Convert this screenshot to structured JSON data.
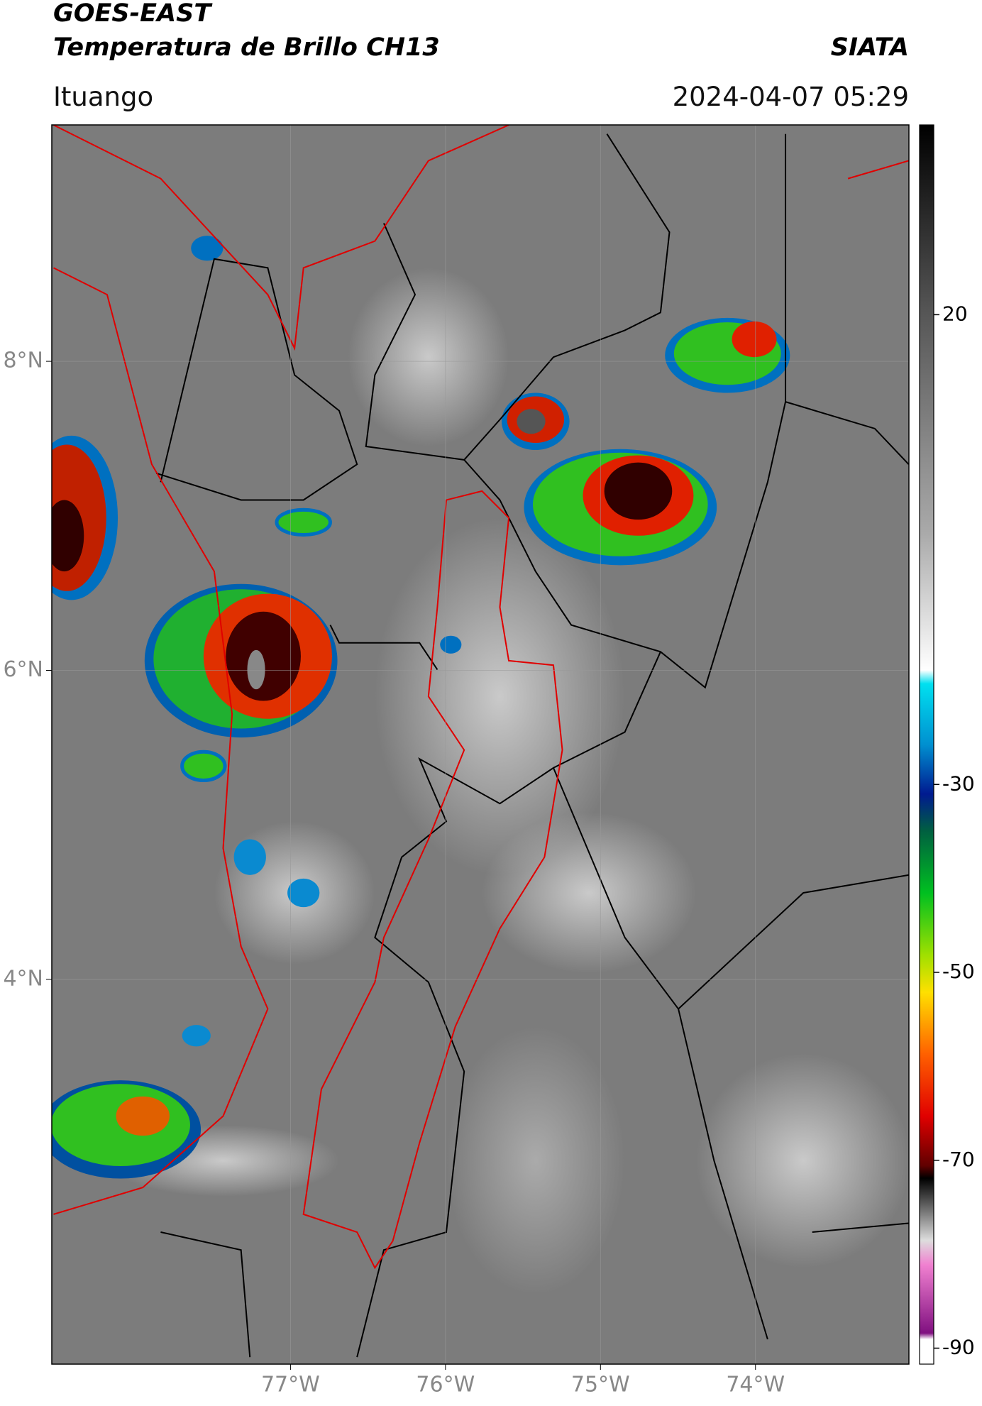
{
  "header": {
    "title": "GOES-EAST",
    "subtitle": "Temperatura de Brillo CH13",
    "org": "SIATA",
    "place": "Ituango",
    "time": "2024-04-07 05:29"
  },
  "map": {
    "xlim": [
      -78.54,
      -73.01
    ],
    "ylim": [
      1.51,
      9.53
    ],
    "xticks": [
      {
        "value": -77,
        "label": "77°W"
      },
      {
        "value": -76,
        "label": "76°W"
      },
      {
        "value": -75,
        "label": "75°W"
      },
      {
        "value": -74,
        "label": "74°W"
      }
    ],
    "yticks": [
      {
        "value": 8,
        "label": "8°N"
      },
      {
        "value": 6,
        "label": "6°N"
      },
      {
        "value": 4,
        "label": "4°N"
      }
    ],
    "grid": true
  },
  "colorbar": {
    "lim": [
      -91.7,
      40.2
    ],
    "ticks": [
      20,
      -30,
      -50,
      -70,
      -90
    ]
  }
}
